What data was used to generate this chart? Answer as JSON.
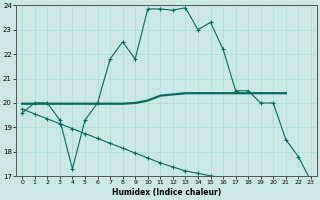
{
  "xlabel": "Humidex (Indice chaleur)",
  "xlim": [
    -0.5,
    23.5
  ],
  "ylim": [
    17,
    24
  ],
  "yticks": [
    17,
    18,
    19,
    20,
    21,
    22,
    23,
    24
  ],
  "xticks": [
    0,
    1,
    2,
    3,
    4,
    5,
    6,
    7,
    8,
    9,
    10,
    11,
    12,
    13,
    14,
    15,
    16,
    17,
    18,
    19,
    20,
    21,
    22,
    23
  ],
  "bg_color": "#cce8e4",
  "line_color": "#006b60",
  "line1_x": [
    0,
    1,
    2,
    3,
    4,
    5,
    6,
    7,
    8,
    9,
    10,
    11,
    12,
    13,
    14,
    15,
    16,
    17,
    18,
    19,
    20,
    21,
    22,
    23
  ],
  "line1_y": [
    19.6,
    20.0,
    20.0,
    19.3,
    17.3,
    19.3,
    20.0,
    21.8,
    22.5,
    21.8,
    23.85,
    23.85,
    23.8,
    23.9,
    23.0,
    23.3,
    22.2,
    20.5,
    20.5,
    20.0,
    20.0,
    18.5,
    17.8,
    16.8
  ],
  "line2_x": [
    0,
    1,
    2,
    3,
    4,
    5,
    6,
    7,
    8,
    9,
    10,
    11,
    12,
    13,
    14,
    15,
    16,
    17,
    18,
    19,
    20,
    21
  ],
  "line2_y": [
    19.97,
    19.97,
    19.97,
    19.97,
    19.97,
    19.97,
    19.97,
    19.97,
    19.97,
    20.0,
    20.1,
    20.3,
    20.35,
    20.4,
    20.4,
    20.4,
    20.4,
    20.4,
    20.4,
    20.4,
    20.4,
    20.4
  ],
  "line3_x": [
    0,
    1,
    2,
    3,
    4,
    5,
    6,
    7,
    8,
    9,
    10,
    11,
    12,
    13,
    14,
    15,
    16,
    17,
    18,
    19,
    20,
    21,
    22,
    23
  ],
  "line3_y": [
    19.75,
    19.55,
    19.35,
    19.15,
    18.95,
    18.75,
    18.55,
    18.35,
    18.15,
    17.95,
    17.75,
    17.55,
    17.38,
    17.22,
    17.12,
    17.02,
    16.92,
    16.85,
    16.78,
    16.73,
    16.73,
    16.7,
    16.7,
    16.68
  ],
  "grid_color": "#aaddd6",
  "marker": "+"
}
